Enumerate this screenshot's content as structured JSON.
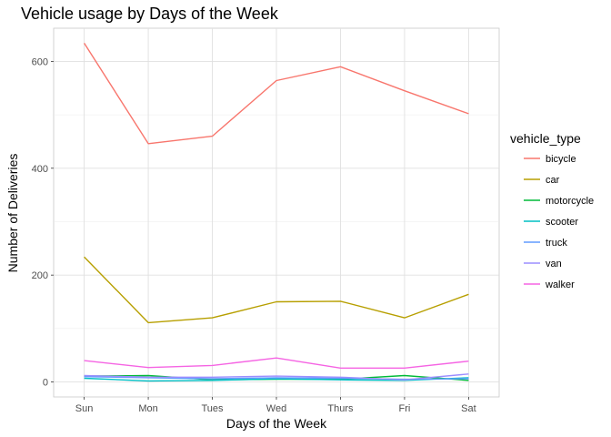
{
  "chart_data": {
    "type": "line",
    "title": "Vehicle usage by Days of the Week",
    "xlabel": "Days of the Week",
    "ylabel": "Number of Deliveries",
    "categories": [
      "Sun",
      "Mon",
      "Tues",
      "Wed",
      "Thurs",
      "Fri",
      "Sat"
    ],
    "yticks": [
      0,
      200,
      400,
      600
    ],
    "ylim": [
      -28,
      662
    ],
    "grid": true,
    "legend": {
      "title": "vehicle_type",
      "position": "right"
    },
    "series": [
      {
        "name": "bicycle",
        "color": "#F8766D",
        "values": [
          634,
          446,
          460,
          564,
          590,
          545,
          502
        ]
      },
      {
        "name": "car",
        "color": "#B79F00",
        "values": [
          234,
          111,
          120,
          150,
          151,
          120,
          164
        ]
      },
      {
        "name": "motorcycle",
        "color": "#00BA38",
        "values": [
          11,
          12,
          4,
          5,
          5,
          12,
          3
        ]
      },
      {
        "name": "scooter",
        "color": "#00BFC4",
        "values": [
          7,
          2,
          3,
          6,
          4,
          3,
          8
        ]
      },
      {
        "name": "truck",
        "color": "#619CFF",
        "values": [
          10,
          8,
          6,
          8,
          7,
          5,
          6
        ]
      },
      {
        "name": "van",
        "color": "#9C8DFF",
        "values": [
          12,
          9,
          9,
          11,
          9,
          4,
          15
        ]
      },
      {
        "name": "walker",
        "color": "#F564E3",
        "values": [
          40,
          27,
          31,
          45,
          26,
          26,
          39
        ]
      }
    ]
  }
}
